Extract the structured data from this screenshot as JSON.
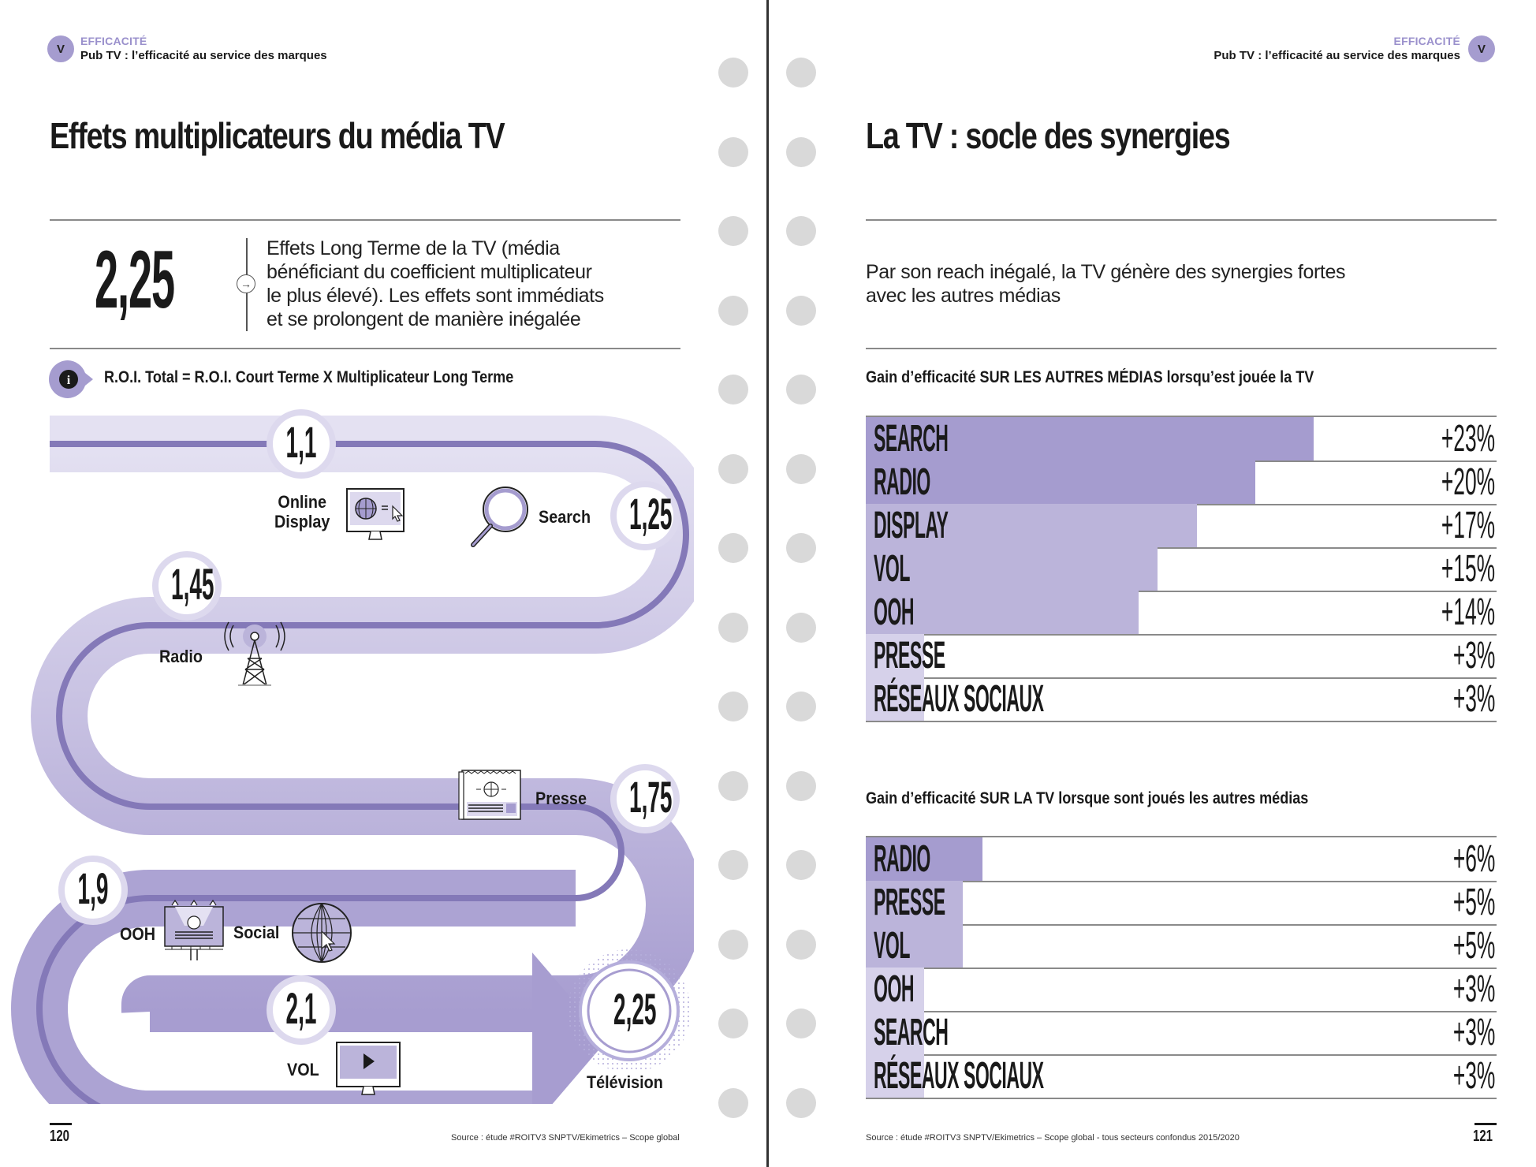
{
  "left_page": {
    "header": {
      "badge": "V",
      "kicker": "EFFICACITÉ",
      "subtitle": "Pub TV : l’efficacité au service des marques"
    },
    "title": "Effets multiplicateurs du média TV",
    "highlight": {
      "value": "2,25",
      "text_lines": [
        "Effets Long Terme de la TV (média",
        "bénéficiant du coefficient multiplicateur",
        "le plus élevé). Les effets sont immédiats",
        "et se prolongent de manière inégalée"
      ]
    },
    "formula": {
      "icon": "info-icon",
      "text": "R.O.I. Total = R.O.I. Court Terme X Multiplicateur Long Terme"
    },
    "journey": {
      "nodes": [
        {
          "value": "1,1",
          "media": [
            "Online",
            "Display"
          ],
          "icon": "monitor-globe-icon"
        },
        {
          "value": "1,25",
          "media": [
            "Search"
          ],
          "icon": "magnifier-icon"
        },
        {
          "value": "1,45",
          "media": [
            "Radio"
          ],
          "icon": "radio-tower-icon"
        },
        {
          "value": "1,75",
          "media": [
            "Presse"
          ],
          "icon": "newspaper-icon"
        },
        {
          "value": "1,9",
          "media": [
            "OOH"
          ],
          "icon": "billboard-icon"
        },
        {
          "value": "",
          "media": [
            "Social"
          ],
          "icon": "globe-cursor-icon"
        },
        {
          "value": "2,1",
          "media": [
            "VOL"
          ],
          "icon": "video-monitor-icon"
        },
        {
          "value": "2,25",
          "media": [
            "Télévision"
          ],
          "icon": "tv-target-icon"
        }
      ]
    },
    "footer": {
      "page_number": "120",
      "source": "Source : étude #ROITV3 SNPTV/Ekimetrics – Scope global"
    }
  },
  "right_page": {
    "header": {
      "badge": "V",
      "kicker": "EFFICACITÉ",
      "subtitle": "Pub TV : l’efficacité au service des marques"
    },
    "title": "La TV : socle des synergies",
    "intro_lines": [
      "Par son reach inégalé, la TV génère des synergies fortes",
      "avec les autres médias"
    ],
    "footer": {
      "page_number": "121",
      "source": "Source : étude #ROITV3 SNPTV/Ekimetrics – Scope global - tous secteurs confondus 2015/2020"
    }
  },
  "colors": {
    "accent": "#a59ccf",
    "accent_dark": "#8479b8",
    "bar_strong": "#a59ccf",
    "bar_mid": "#bbb4da",
    "bar_light": "#d6d1ea",
    "rule": "#8a8a8a",
    "hole": "#d9d9d9"
  },
  "chart_data": [
    {
      "type": "bar",
      "orientation": "horizontal",
      "title": "Gain d’efficacité SUR LES AUTRES MÉDIAS lorsqu’est jouée la TV",
      "categories": [
        "SEARCH",
        "RADIO",
        "DISPLAY",
        "VOL",
        "OOH",
        "PRESSE",
        "RÉSEAUX SOCIAUX"
      ],
      "values": [
        23,
        20,
        17,
        15,
        14,
        3,
        3
      ],
      "labels": [
        "+23%",
        "+20%",
        "+17%",
        "+15%",
        "+14%",
        "+3%",
        "+3%"
      ],
      "unit": "%",
      "xlim": [
        0,
        32.4
      ],
      "grid": false
    },
    {
      "type": "bar",
      "orientation": "horizontal",
      "title": "Gain d’efficacité SUR LA TV lorsque sont joués les autres médias",
      "categories": [
        "RADIO",
        "PRESSE",
        "VOL",
        "OOH",
        "SEARCH",
        "RÉSEAUX SOCIAUX"
      ],
      "values": [
        6,
        5,
        5,
        3,
        3,
        3
      ],
      "labels": [
        "+6%",
        "+5%",
        "+5%",
        "+3%",
        "+3%",
        "+3%"
      ],
      "unit": "%",
      "xlim": [
        0,
        32.4
      ],
      "grid": false
    }
  ]
}
